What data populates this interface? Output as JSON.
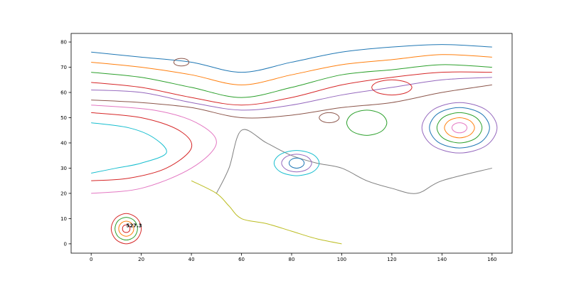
{
  "chart_data": {
    "type": "contour",
    "xlim": [
      -8,
      168
    ],
    "ylim": [
      -3.7,
      83.4
    ],
    "xticks": [
      0,
      20,
      40,
      60,
      80,
      100,
      120,
      140,
      160
    ],
    "yticks": [
      0,
      10,
      20,
      30,
      40,
      50,
      60,
      70,
      80
    ],
    "annotations": [
      {
        "text": "527.3",
        "x": 14,
        "y": 6
      }
    ],
    "series": [
      {
        "color": "#1f77b4",
        "x": [
          0,
          20,
          40,
          60,
          80,
          100,
          120,
          140,
          160
        ],
        "y": [
          76,
          74,
          72,
          68,
          72,
          76,
          78,
          79,
          78
        ]
      },
      {
        "color": "#ff7f0e",
        "x": [
          0,
          20,
          40,
          60,
          80,
          100,
          120,
          140,
          160
        ],
        "y": [
          72,
          70,
          67,
          63,
          67,
          71,
          73,
          75,
          74
        ]
      },
      {
        "color": "#2ca02c",
        "x": [
          0,
          20,
          40,
          60,
          80,
          100,
          120,
          140,
          160
        ],
        "y": [
          68,
          66,
          62,
          58,
          62,
          67,
          69,
          71,
          70
        ]
      },
      {
        "color": "#d62728",
        "x": [
          0,
          20,
          40,
          60,
          80,
          100,
          120,
          140,
          160
        ],
        "y": [
          64,
          62,
          58,
          55,
          58,
          63,
          66,
          68,
          68
        ]
      },
      {
        "color": "#9467bd",
        "x": [
          0,
          20,
          40,
          60,
          80,
          100,
          120,
          140,
          160
        ],
        "y": [
          61,
          60,
          56,
          53,
          55,
          59,
          62,
          65,
          66
        ]
      },
      {
        "color": "#8c564b",
        "x": [
          0,
          20,
          40,
          60,
          80,
          100,
          120,
          140,
          160
        ],
        "y": [
          57,
          56,
          54,
          50,
          51,
          54,
          56,
          60,
          63
        ]
      },
      {
        "color": "#17becf",
        "x": [
          0,
          15,
          25,
          30,
          20,
          10,
          0
        ],
        "y": [
          48,
          46,
          42,
          36,
          32,
          30,
          28
        ]
      },
      {
        "color": "#d62728",
        "x": [
          0,
          20,
          35,
          40,
          30,
          15,
          0
        ],
        "y": [
          52,
          50,
          45,
          38,
          30,
          26,
          25
        ]
      },
      {
        "color": "#e377c2",
        "x": [
          0,
          25,
          42,
          50,
          40,
          20,
          0
        ],
        "y": [
          55,
          53,
          48,
          40,
          30,
          22,
          20
        ]
      },
      {
        "color": "#7f7f7f",
        "x": [
          50,
          55,
          60,
          70,
          80,
          90,
          100,
          110,
          120,
          130,
          140,
          160
        ],
        "y": [
          20,
          30,
          45,
          40,
          35,
          32,
          30,
          25,
          22,
          20,
          25,
          30
        ]
      },
      {
        "color": "#bcbd22",
        "x": [
          40,
          50,
          55,
          60,
          70,
          80,
          90,
          100
        ],
        "y": [
          25,
          20,
          15,
          10,
          8,
          5,
          2,
          0
        ]
      },
      {
        "color": "#e377c2",
        "x": [
          150,
          149.1,
          147,
          144.9,
          144,
          144.9,
          147,
          149.1,
          150
        ],
        "y": [
          46,
          47.4,
          48,
          47.4,
          46,
          44.6,
          44,
          44.6,
          46
        ]
      },
      {
        "color": "#ff7f0e",
        "x": [
          153,
          151.2,
          147,
          142.8,
          141,
          142.8,
          147,
          151.2,
          153
        ],
        "y": [
          46,
          48.8,
          50,
          48.8,
          46,
          43.2,
          42,
          43.2,
          46
        ]
      },
      {
        "color": "#2ca02c",
        "x": [
          156,
          153.4,
          147,
          140.6,
          138,
          140.6,
          147,
          153.4,
          156
        ],
        "y": [
          46,
          50.2,
          52,
          50.2,
          46,
          41.8,
          40,
          41.8,
          46
        ]
      },
      {
        "color": "#1f77b4",
        "x": [
          159,
          155.5,
          147,
          138.5,
          135,
          138.5,
          147,
          155.5,
          159
        ],
        "y": [
          46,
          51.7,
          54,
          51.7,
          46,
          40.3,
          38,
          40.3,
          46
        ]
      },
      {
        "color": "#9467bd",
        "x": [
          162,
          157.6,
          147,
          136.4,
          132,
          136.4,
          147,
          157.6,
          162
        ],
        "y": [
          46,
          53.1,
          56,
          53.1,
          46,
          38.9,
          36,
          38.9,
          46
        ]
      },
      {
        "color": "#d62728",
        "x": [
          15.5,
          15.1,
          14,
          12.9,
          12.5,
          12.9,
          14,
          15.1,
          15.5
        ],
        "y": [
          6,
          7.1,
          7.5,
          7.1,
          6,
          4.9,
          4.5,
          4.9,
          6
        ]
      },
      {
        "color": "#ff7f0e",
        "x": [
          17,
          16.1,
          14,
          11.9,
          11,
          11.9,
          14,
          16.1,
          17
        ],
        "y": [
          6,
          8.1,
          9,
          8.1,
          6,
          3.9,
          3,
          3.9,
          6
        ]
      },
      {
        "color": "#2ca02c",
        "x": [
          18.5,
          17.2,
          14,
          10.8,
          9.5,
          10.8,
          14,
          17.2,
          18.5
        ],
        "y": [
          6,
          9.2,
          10.5,
          9.2,
          6,
          2.8,
          1.5,
          2.8,
          6
        ]
      },
      {
        "color": "#d62728",
        "x": [
          20,
          18.2,
          14,
          9.8,
          8,
          9.8,
          14,
          18.2,
          20
        ],
        "y": [
          6,
          10.2,
          12,
          10.2,
          6,
          1.8,
          0,
          1.8,
          6
        ]
      },
      {
        "color": "#1f77b4",
        "x": [
          85,
          84.1,
          82,
          79.9,
          79,
          79.9,
          82,
          84.1,
          85
        ],
        "y": [
          32,
          33.4,
          34,
          33.4,
          32,
          30.6,
          30,
          30.6,
          32
        ]
      },
      {
        "color": "#9467bd",
        "x": [
          88,
          86.2,
          82,
          77.8,
          76,
          77.8,
          82,
          86.2,
          88
        ],
        "y": [
          32,
          34.5,
          35.5,
          34.5,
          32,
          29.5,
          28.5,
          29.5,
          32
        ]
      },
      {
        "color": "#17becf",
        "x": [
          91,
          88.4,
          82,
          75.6,
          73,
          75.6,
          82,
          88.4,
          91
        ],
        "y": [
          32,
          35.5,
          37,
          35.5,
          32,
          28.5,
          27,
          28.5,
          32
        ]
      },
      {
        "color": "#8c564b",
        "x": [
          99,
          97.8,
          95,
          92.2,
          91,
          92.2,
          95,
          97.8,
          99
        ],
        "y": [
          50,
          51.4,
          52,
          51.4,
          50,
          48.6,
          48,
          48.6,
          50
        ]
      },
      {
        "color": "#2ca02c",
        "x": [
          118,
          115.7,
          110,
          104.3,
          102,
          104.3,
          110,
          115.7,
          118
        ],
        "y": [
          48,
          51.5,
          53,
          51.5,
          48,
          44.5,
          43,
          44.5,
          48
        ]
      },
      {
        "color": "#d62728",
        "x": [
          128,
          125.7,
          120,
          114.3,
          112,
          114.3,
          120,
          125.7,
          128
        ],
        "y": [
          62,
          64.1,
          65,
          64.1,
          62,
          59.9,
          59,
          59.9,
          62
        ]
      },
      {
        "color": "#8c564b",
        "x": [
          39,
          38.1,
          36,
          33.9,
          33,
          33.9,
          36,
          38.1,
          39
        ],
        "y": [
          72,
          73.1,
          73.5,
          73.1,
          72,
          70.9,
          70.5,
          70.9,
          72
        ]
      }
    ]
  }
}
